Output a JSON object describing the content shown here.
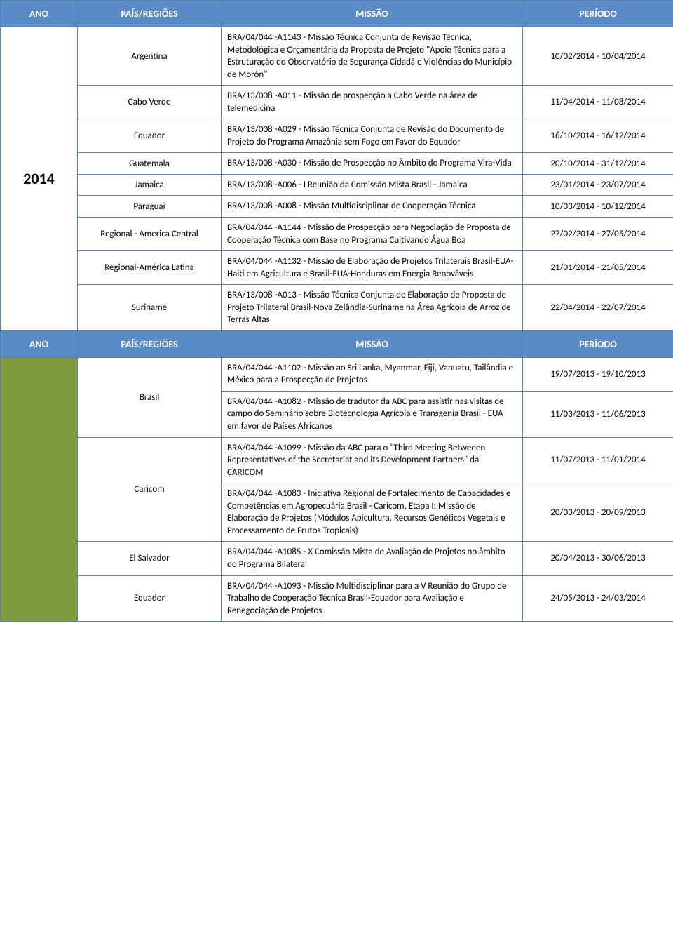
{
  "headers": {
    "ano": "ANO",
    "pais": "PAÍS/REGIÕES",
    "missao": "MISSÃO",
    "periodo": "PERÍODO"
  },
  "section1": {
    "year": "2014",
    "rows": [
      {
        "pais": "Argentina",
        "missao": "BRA/04/044 -A1143 - Missão Técnica Conjunta de Revisão Técnica, Metodológica e Orçamentária da Proposta de Projeto \"Apoio Técnica para a Estruturação do Observatório de Segurança Cidadã e Violências do Município de Morón\"",
        "periodo": "10/02/2014 - 10/04/2014"
      },
      {
        "pais": "Cabo Verde",
        "missao": "BRA/13/008 -A011 - Missão de prospecção a Cabo Verde na área de telemedicina",
        "periodo": "11/04/2014 - 11/08/2014"
      },
      {
        "pais": "Equador",
        "missao": "BRA/13/008 -A029 - Missão Técnica Conjunta de Revisão do Documento de Projeto do Programa Amazônia sem Fogo em Favor do Equador",
        "periodo": "16/10/2014 - 16/12/2014"
      },
      {
        "pais": "Guatemala",
        "missao": "BRA/13/008 -A030 - Missão de Prospecção no Âmbito do Programa Vira-Vida",
        "periodo": "20/10/2014 - 31/12/2014"
      },
      {
        "pais": "Jamaica",
        "missao": "BRA/13/008 -A006 - I Reunião da Comissão Mista Brasil - Jamaica",
        "periodo": "23/01/2014 - 23/07/2014"
      },
      {
        "pais": "Paraguai",
        "missao": "BRA/13/008 -A008 - Missão Multidisciplinar de Cooperação Técnica",
        "periodo": "10/03/2014 - 10/12/2014"
      },
      {
        "pais": "Regional - America Central",
        "missao": "BRA/04/044 -A1144 - Missão de Prospecção para Negociação de Proposta de Cooperação Técnica com Base no Programa Cultivando Água Boa",
        "periodo": "27/02/2014 - 27/05/2014"
      },
      {
        "pais": "Regional-América Latina",
        "missao": "BRA/04/044 -A1132 - Missão de Elaboração de Projetos Trilaterais Brasil-EUA-Haiti em Agricultura e Brasil-EUA-Honduras em Energia Renováveis",
        "periodo": "21/01/2014 - 21/05/2014"
      },
      {
        "pais": "Suriname",
        "missao": "BRA/13/008 -A013 - Missão Técnica Conjunta de Elaboração de Proposta de Projeto Trilateral Brasil-Nova Zelândia-Suriname na Área Agrícola de Arroz de Terras Altas",
        "periodo": "22/04/2014 - 22/07/2014"
      }
    ]
  },
  "section2": {
    "green_year_block": true,
    "groups": [
      {
        "pais": "Brasil",
        "rows": [
          {
            "missao": "BRA/04/044 -A1102 - Missão ao Sri Lanka, Myanmar, Fiji, Vanuatu, Tailândia e México para a Prospecção de Projetos",
            "periodo": "19/07/2013 - 19/10/2013"
          },
          {
            "missao": "BRA/04/044 -A1082 - Missão de tradutor da ABC para assistir nas visitas de campo do Seminário sobre Biotecnologia Agrícola e Transgenia Brasil - EUA em favor de Países Africanos",
            "periodo": "11/03/2013 - 11/06/2013"
          }
        ]
      },
      {
        "pais": "Caricom",
        "rows": [
          {
            "missao": "BRA/04/044 -A1099 - Missão da ABC para o \"Third Meeting Betweeen Representatives of the Secretariat and its Development Partners\" da CARICOM",
            "periodo": "11/07/2013 - 11/01/2014"
          },
          {
            "missao": "BRA/04/044 -A1083 - Iniciativa Regional de Fortalecimento de Capacidades e Competências em Agropecuária Brasil - Caricom, Etapa I: Missão de Elaboração de Projetos (Módulos Apicultura, Recursos Genéticos Vegetais e Processamento de Frutos Tropicais)",
            "periodo": "20/03/2013 - 20/09/2013"
          }
        ]
      },
      {
        "pais": "El Salvador",
        "rows": [
          {
            "missao": "BRA/04/044 -A1085 - X Comissão Mista de Avaliação de Projetos no âmbito do Programa Bilateral",
            "periodo": "20/04/2013 - 30/06/2013"
          }
        ]
      },
      {
        "pais": "Equador",
        "rows": [
          {
            "missao": "BRA/04/044 -A1093 - Missão Multidisciplinar para a V Reunião do Grupo de Trabalho de Cooperação Técnica Brasil-Equador para Avaliação e Renegociação de Projetos",
            "periodo": "24/05/2013 - 24/03/2014"
          }
        ]
      }
    ]
  }
}
